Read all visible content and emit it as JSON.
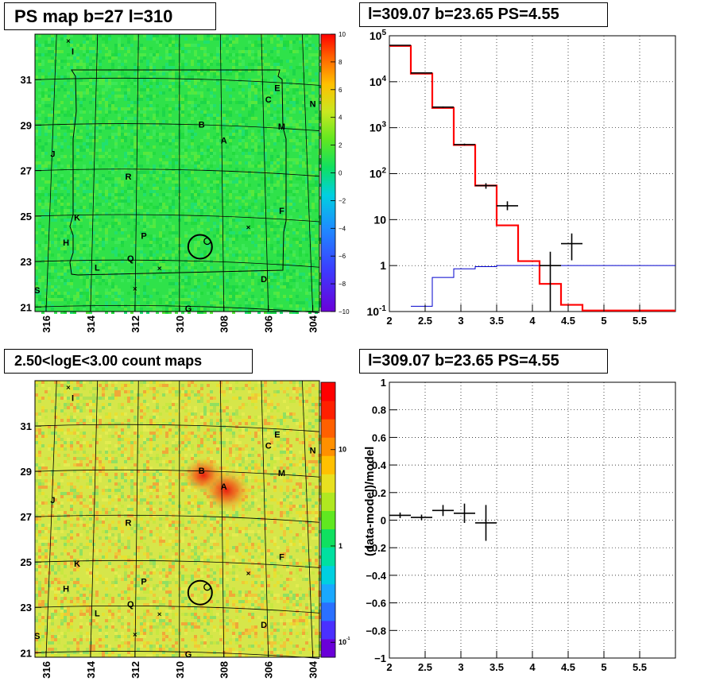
{
  "panels": {
    "ps_map": {
      "title": "PS map b=27 l=310",
      "x_ticks": [
        "316",
        "314",
        "312",
        "310",
        "308",
        "306",
        "304"
      ],
      "y_ticks": [
        "31",
        "29",
        "27",
        "25",
        "23",
        "21"
      ],
      "colorbar_ticks": [
        "10",
        "8",
        "6",
        "4",
        "2",
        "0",
        "−2",
        "−4",
        "−6",
        "−8",
        "−10"
      ],
      "sources": [
        "I",
        "E",
        "C",
        "N",
        "B",
        "M",
        "A",
        "J",
        "R",
        "F",
        "K",
        "P",
        "H",
        "Q",
        "L",
        "D",
        "S",
        "G"
      ]
    },
    "spectrum": {
      "title": "l=309.07 b=23.65 PS=4.55",
      "x_ticks": [
        "2",
        "2.5",
        "3",
        "3.5",
        "4",
        "4.5",
        "5",
        "5.5"
      ],
      "y_ticks": [
        "10^5",
        "10^4",
        "10^3",
        "10^2",
        "10",
        "1",
        "10^-1"
      ]
    },
    "count_map": {
      "title": "2.50<logE<3.00 count maps",
      "x_ticks": [
        "316",
        "314",
        "312",
        "310",
        "308",
        "306",
        "304"
      ],
      "y_ticks": [
        "31",
        "29",
        "27",
        "25",
        "23",
        "21"
      ],
      "colorbar_ticks": [
        "10",
        "1",
        "10^-1"
      ],
      "sources": [
        "I",
        "E",
        "C",
        "N",
        "B",
        "M",
        "A",
        "J",
        "R",
        "F",
        "K",
        "P",
        "H",
        "Q",
        "L",
        "D",
        "S",
        "G"
      ]
    },
    "residual": {
      "title": "l=309.07 b=23.65 PS=4.55",
      "ylabel": "(data-model)/model",
      "x_ticks": [
        "2",
        "2.5",
        "3",
        "3.5",
        "4",
        "4.5",
        "5",
        "5.5"
      ],
      "y_ticks": [
        "1",
        "0.8",
        "0.6",
        "0.4",
        "0.2",
        "0",
        "−0.2",
        "−0.4",
        "−0.6",
        "−0.8",
        "−1"
      ]
    }
  },
  "colors": {
    "model_line": "#ff0000",
    "background_line": "#0000cc",
    "data_points": "#000000",
    "map_green": "#33e64a",
    "count_yellow": "#d8e84a"
  },
  "chart_data": [
    {
      "type": "heatmap",
      "title": "PS map b=27 l=310",
      "xlim": [
        316.5,
        303.7
      ],
      "ylim": [
        20.8,
        33.0
      ],
      "colorbar_range": [
        -10,
        10
      ],
      "circle": {
        "l": 309.07,
        "b": 23.65
      },
      "markers": [
        {
          "label": "I",
          "l": 314.8,
          "b": 32.1
        },
        {
          "label": "E",
          "l": 305.6,
          "b": 30.5
        },
        {
          "label": "C",
          "l": 306.0,
          "b": 30.0
        },
        {
          "label": "N",
          "l": 304.0,
          "b": 29.8
        },
        {
          "label": "B",
          "l": 309.0,
          "b": 28.9
        },
        {
          "label": "M",
          "l": 305.4,
          "b": 28.8
        },
        {
          "label": "A",
          "l": 308.0,
          "b": 28.2
        },
        {
          "label": "J",
          "l": 315.7,
          "b": 27.6
        },
        {
          "label": "R",
          "l": 312.3,
          "b": 26.6
        },
        {
          "label": "F",
          "l": 305.4,
          "b": 25.1
        },
        {
          "label": "K",
          "l": 314.6,
          "b": 24.8
        },
        {
          "label": "P",
          "l": 311.6,
          "b": 24.0
        },
        {
          "label": "H",
          "l": 315.1,
          "b": 23.7
        },
        {
          "label": "Q",
          "l": 312.2,
          "b": 23.0
        },
        {
          "label": "L",
          "l": 313.7,
          "b": 22.6
        },
        {
          "label": "D",
          "l": 306.2,
          "b": 22.1
        },
        {
          "label": "S",
          "l": 316.4,
          "b": 21.6
        },
        {
          "label": "G",
          "l": 309.6,
          "b": 20.8
        }
      ]
    },
    {
      "type": "line",
      "title": "l=309.07 b=23.65 PS=4.55",
      "xlim": [
        2.0,
        6.0
      ],
      "ylim": [
        0.1,
        100000
      ],
      "y_scale": "log",
      "series": [
        {
          "style": "red-step",
          "bin_edges": [
            2.0,
            2.3,
            2.6,
            2.9,
            3.2,
            3.5,
            3.8,
            4.1,
            4.4,
            4.7,
            6.0
          ],
          "values": [
            60000,
            15000,
            2700,
            420,
            55,
            7.5,
            1.25,
            0.4,
            0.14,
            0.105
          ]
        },
        {
          "style": "blue-step",
          "bin_edges": [
            2.3,
            2.6,
            2.9,
            3.2,
            3.5,
            3.8,
            4.1,
            6.0
          ],
          "values": [
            0.13,
            0.55,
            0.85,
            0.95,
            1.0,
            1.0,
            1.0
          ]
        },
        {
          "style": "data-points",
          "points": [
            {
              "x": 2.15,
              "y": 62000,
              "xerr": 0.15,
              "ylo": 61000,
              "yhi": 63000
            },
            {
              "x": 2.45,
              "y": 15500,
              "xerr": 0.15,
              "ylo": 15200,
              "yhi": 15800
            },
            {
              "x": 2.75,
              "y": 2800,
              "xerr": 0.15,
              "ylo": 2700,
              "yhi": 2900
            },
            {
              "x": 3.05,
              "y": 430,
              "xerr": 0.15,
              "ylo": 410,
              "yhi": 450
            },
            {
              "x": 3.35,
              "y": 55,
              "xerr": 0.15,
              "ylo": 47,
              "yhi": 62
            },
            {
              "x": 3.65,
              "y": 20,
              "xerr": 0.15,
              "ylo": 16,
              "yhi": 25
            },
            {
              "x": 4.25,
              "y": 1.0,
              "xerr": 0.15,
              "ylo": 0.1,
              "yhi": 2.0
            },
            {
              "x": 4.55,
              "y": 3.0,
              "xerr": 0.15,
              "ylo": 1.3,
              "yhi": 5.0
            }
          ]
        }
      ]
    },
    {
      "type": "heatmap",
      "title": "2.50<logE<3.00 count maps",
      "xlim": [
        316.5,
        303.7
      ],
      "ylim": [
        20.8,
        33.0
      ],
      "colorbar_scale": "log",
      "colorbar_range": [
        0.07,
        50
      ],
      "hotspots": [
        {
          "label": "A",
          "l": 308.0,
          "b": 28.1
        },
        {
          "label": "B",
          "l": 309.0,
          "b": 28.9
        }
      ],
      "circle": {
        "l": 309.07,
        "b": 23.65
      }
    },
    {
      "type": "scatter",
      "title": "l=309.07 b=23.65 PS=4.55",
      "ylabel": "(data-model)/model",
      "xlim": [
        2.0,
        6.0
      ],
      "ylim": [
        -1.0,
        1.0
      ],
      "points": [
        {
          "x": 2.15,
          "y": 0.035,
          "xerr": 0.15,
          "yerr": 0.02
        },
        {
          "x": 2.45,
          "y": 0.02,
          "xerr": 0.15,
          "yerr": 0.02
        },
        {
          "x": 2.75,
          "y": 0.07,
          "xerr": 0.15,
          "yerr": 0.04
        },
        {
          "x": 3.05,
          "y": 0.05,
          "xerr": 0.15,
          "yerr": 0.07
        },
        {
          "x": 3.35,
          "y": -0.02,
          "xerr": 0.15,
          "yerr": 0.13
        }
      ]
    }
  ]
}
